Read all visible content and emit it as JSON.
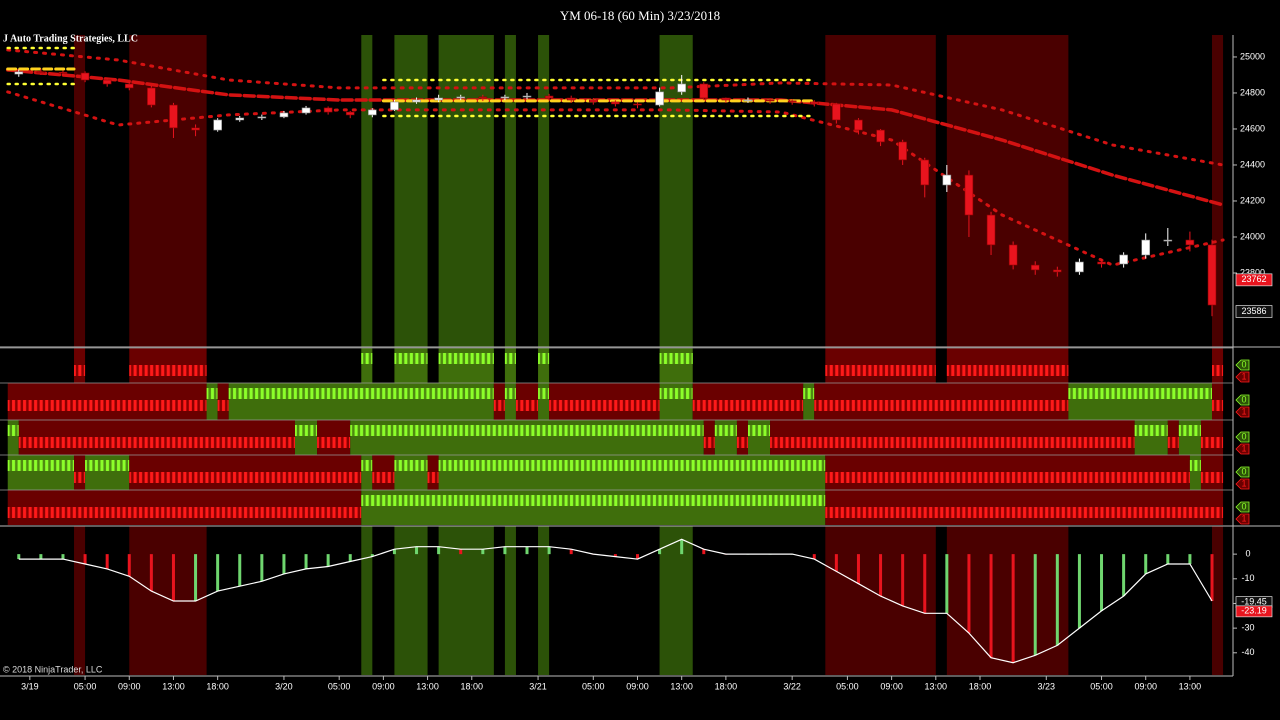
{
  "chart_data": {
    "type": "candlestick",
    "title": "YM 06-18 (60 Min)  3/23/2018",
    "watermark": "J Auto Trading Strategies, LLC",
    "copyright": "© 2018 NinjaTrader, LLC",
    "xlim": [
      -0.7,
      110.9
    ],
    "xticks": [
      {
        "value": 2,
        "label": "3/19"
      },
      {
        "value": 7,
        "label": "05:00"
      },
      {
        "value": 11,
        "label": "09:00"
      },
      {
        "value": 15,
        "label": "13:00"
      },
      {
        "value": 19,
        "label": "18:00"
      },
      {
        "value": 25,
        "label": "3/20"
      },
      {
        "value": 30,
        "label": "05:00"
      },
      {
        "value": 34,
        "label": "09:00"
      },
      {
        "value": 38,
        "label": "13:00"
      },
      {
        "value": 42,
        "label": "18:00"
      },
      {
        "value": 48,
        "label": "3/21"
      },
      {
        "value": 53,
        "label": "05:00"
      },
      {
        "value": 57,
        "label": "09:00"
      },
      {
        "value": 61,
        "label": "13:00"
      },
      {
        "value": 65,
        "label": "18:00"
      },
      {
        "value": 71,
        "label": "3/22"
      },
      {
        "value": 76,
        "label": "05:00"
      },
      {
        "value": 80,
        "label": "09:00"
      },
      {
        "value": 84,
        "label": "13:00"
      },
      {
        "value": 88,
        "label": "18:00"
      },
      {
        "value": 94,
        "label": "3/23"
      },
      {
        "value": 99,
        "label": "05:00"
      },
      {
        "value": 103,
        "label": "09:00"
      },
      {
        "value": 107,
        "label": "13:00"
      }
    ],
    "ylim": [
      23400,
      25122
    ],
    "yticks": [
      23800,
      24000,
      24200,
      24400,
      24600,
      24800,
      25000
    ],
    "price_markers": [
      23762,
      23586
    ],
    "price_marker_colors": [
      "#e8141e",
      "#111111"
    ],
    "up_color": "#ffffff",
    "down_color": "#e8141e",
    "x": [
      1,
      3,
      5,
      7,
      9,
      11,
      13,
      15,
      17,
      19,
      21,
      23,
      25,
      27,
      29,
      31,
      33,
      35,
      37,
      39,
      41,
      43,
      45,
      47,
      49,
      51,
      53,
      55,
      57,
      59,
      61,
      63,
      65,
      67,
      69,
      71,
      73,
      75,
      77,
      79,
      81,
      83,
      85,
      87,
      89,
      91,
      93,
      95,
      97,
      99,
      101,
      103,
      105,
      107,
      109
    ],
    "open": [
      24905,
      24917,
      24915,
      24911,
      24872,
      24850,
      24828,
      24733,
      24606,
      24594,
      24650,
      24661,
      24667,
      24689,
      24717,
      24694,
      24678,
      24706,
      24750,
      24761,
      24772,
      24778,
      24772,
      24778,
      24783,
      24772,
      24761,
      24750,
      24739,
      24733,
      24806,
      24850,
      24772,
      24761,
      24761,
      24756,
      24750,
      24739,
      24650,
      24594,
      24528,
      24428,
      24289,
      24344,
      24122,
      23956,
      23844,
      23817,
      23806,
      23861,
      23850,
      23900,
      23983,
      23983,
      23956
    ],
    "high": [
      24930,
      24935,
      24925,
      24920,
      24880,
      24860,
      24840,
      24745,
      24625,
      24660,
      24672,
      24680,
      24700,
      24728,
      24725,
      24700,
      24715,
      24762,
      24775,
      24790,
      24790,
      24790,
      24790,
      24800,
      24795,
      24785,
      24772,
      24760,
      24748,
      24830,
      24900,
      24860,
      24775,
      24775,
      24770,
      24765,
      24760,
      24745,
      24660,
      24600,
      24540,
      24440,
      24400,
      24370,
      24140,
      23975,
      23865,
      23835,
      23880,
      23880,
      23915,
      24020,
      24050,
      24030,
      23985
    ],
    "low": [
      24890,
      24900,
      24898,
      24860,
      24835,
      24815,
      24720,
      24550,
      24560,
      24585,
      24640,
      24650,
      24660,
      24680,
      24680,
      24660,
      24665,
      24700,
      24740,
      24750,
      24760,
      24755,
      24760,
      24765,
      24760,
      24745,
      24735,
      24725,
      24715,
      24725,
      24790,
      24760,
      24745,
      24745,
      24740,
      24735,
      24725,
      24630,
      24570,
      24505,
      24400,
      24220,
      24250,
      24000,
      23900,
      23820,
      23790,
      23780,
      23790,
      23830,
      23830,
      23880,
      23950,
      23920,
      23560
    ],
    "close": [
      24917,
      24915,
      24911,
      24872,
      24850,
      24828,
      24733,
      24606,
      24594,
      24650,
      24661,
      24667,
      24689,
      24717,
      24694,
      24678,
      24706,
      24750,
      24761,
      24772,
      24778,
      24772,
      24778,
      24783,
      24772,
      24761,
      24750,
      24739,
      24733,
      24806,
      24850,
      24772,
      24761,
      24761,
      24756,
      24750,
      24739,
      24650,
      24594,
      24528,
      24428,
      24289,
      24344,
      24122,
      23956,
      23844,
      23817,
      23806,
      23861,
      23850,
      23900,
      23983,
      23983,
      23956,
      23622
    ],
    "zones": [
      {
        "from": 6,
        "to": 7,
        "color": "#4a0000"
      },
      {
        "from": 11,
        "to": 18,
        "color": "#4a0000"
      },
      {
        "from": 32,
        "to": 33,
        "color": "#2c5208"
      },
      {
        "from": 35,
        "to": 38,
        "color": "#2c5208"
      },
      {
        "from": 39,
        "to": 44,
        "color": "#2c5208"
      },
      {
        "from": 45,
        "to": 46,
        "color": "#2c5208"
      },
      {
        "from": 48,
        "to": 49,
        "color": "#2c5208"
      },
      {
        "from": 59,
        "to": 62,
        "color": "#2c5208"
      },
      {
        "from": 74,
        "to": 84,
        "color": "#4a0000"
      },
      {
        "from": 85,
        "to": 96,
        "color": "#4a0000"
      },
      {
        "from": 109,
        "to": 110,
        "color": "#4a0000"
      }
    ],
    "overlays": [
      {
        "x": [
          0,
          10,
          20,
          30,
          40,
          50,
          60,
          70,
          80,
          90,
          100,
          110
        ],
        "values": [
          25039,
          24983,
          24872,
          24828,
          24828,
          24828,
          24828,
          24856,
          24844,
          24706,
          24511,
          24400
        ],
        "color": "#d41212",
        "dash": "2 7",
        "width": 3
      },
      {
        "x": [
          0,
          10,
          20,
          30,
          40,
          50,
          60,
          70,
          80,
          90,
          100,
          110
        ],
        "values": [
          24806,
          24622,
          24678,
          24706,
          24706,
          24706,
          24706,
          24694,
          24539,
          24122,
          23844,
          23983
        ],
        "color": "#d41212",
        "dash": "2 7",
        "width": 3
      },
      {
        "x": [
          0,
          10,
          20,
          30,
          40,
          50,
          60,
          70,
          80,
          90,
          100,
          110
        ],
        "values": [
          24928,
          24872,
          24789,
          24761,
          24761,
          24761,
          24761,
          24761,
          24706,
          24539,
          24344,
          24178
        ],
        "color": "#d41212",
        "dash": "10 4",
        "width": 3.5
      },
      {
        "x": [
          0,
          6,
          20,
          34,
          50,
          73
        ],
        "values": [
          25050,
          25050,
          null,
          24872,
          24872,
          24872
        ],
        "color": "#ffff33",
        "dash": "2 6",
        "width": 2.5
      },
      {
        "x": [
          0,
          6,
          20,
          34,
          50,
          73
        ],
        "values": [
          24850,
          24850,
          null,
          24672,
          24672,
          24672
        ],
        "color": "#ffff33",
        "dash": "2 6",
        "width": 2.5
      },
      {
        "x": [
          0,
          6,
          20,
          34,
          50,
          73
        ],
        "values": [
          24933,
          24933,
          null,
          24756,
          24756,
          24756
        ],
        "color": "#ffd21e",
        "dash": "8 4",
        "width": 3
      }
    ],
    "signals": {
      "up_color": "#8cff2a",
      "down_color": "#ff1a1a",
      "up_band": "#3f6e0c",
      "down_band": "#6a0000",
      "rows": [
        [
          [
            6,
            7,
            "down"
          ],
          [
            11,
            18,
            "down"
          ],
          [
            32,
            33,
            "up"
          ],
          [
            35,
            38,
            "up"
          ],
          [
            39,
            44,
            "up"
          ],
          [
            45,
            46,
            "up"
          ],
          [
            48,
            49,
            "up"
          ],
          [
            59,
            62,
            "up"
          ],
          [
            74,
            84,
            "down"
          ],
          [
            85,
            96,
            "down"
          ],
          [
            109,
            110,
            "down"
          ]
        ],
        [
          [
            0,
            18,
            "down"
          ],
          [
            18,
            19,
            "up"
          ],
          [
            19,
            20,
            "down"
          ],
          [
            20,
            44,
            "up"
          ],
          [
            44,
            45,
            "down"
          ],
          [
            45,
            46,
            "up"
          ],
          [
            46,
            48,
            "down"
          ],
          [
            48,
            49,
            "up"
          ],
          [
            49,
            59,
            "down"
          ],
          [
            59,
            62,
            "up"
          ],
          [
            62,
            72,
            "down"
          ],
          [
            72,
            73,
            "up"
          ],
          [
            73,
            96,
            "down"
          ],
          [
            96,
            109,
            "up"
          ],
          [
            109,
            110,
            "down"
          ]
        ],
        [
          [
            0,
            1,
            "up"
          ],
          [
            1,
            26,
            "down"
          ],
          [
            26,
            28,
            "up"
          ],
          [
            28,
            31,
            "down"
          ],
          [
            31,
            63,
            "up"
          ],
          [
            63,
            64,
            "down"
          ],
          [
            64,
            66,
            "up"
          ],
          [
            66,
            67,
            "down"
          ],
          [
            67,
            69,
            "up"
          ],
          [
            69,
            102,
            "down"
          ],
          [
            102,
            105,
            "up"
          ],
          [
            105,
            106,
            "down"
          ],
          [
            106,
            108,
            "up"
          ],
          [
            108,
            110,
            "down"
          ]
        ],
        [
          [
            0,
            6,
            "up"
          ],
          [
            6,
            7,
            "down"
          ],
          [
            7,
            11,
            "up"
          ],
          [
            11,
            32,
            "down"
          ],
          [
            32,
            33,
            "up"
          ],
          [
            33,
            35,
            "down"
          ],
          [
            35,
            38,
            "up"
          ],
          [
            38,
            39,
            "down"
          ],
          [
            39,
            74,
            "up"
          ],
          [
            74,
            107,
            "down"
          ],
          [
            107,
            108,
            "up"
          ],
          [
            108,
            110,
            "down"
          ]
        ],
        [
          [
            0,
            32,
            "down"
          ],
          [
            32,
            74,
            "up"
          ],
          [
            74,
            110,
            "down"
          ]
        ]
      ],
      "labels": [
        [
          "0",
          "1"
        ],
        [
          "0",
          "1"
        ],
        [
          "0",
          "1"
        ],
        [
          "0",
          "1"
        ],
        [
          "0",
          "1"
        ]
      ]
    },
    "oscillator": {
      "type": "histogram",
      "ylim": [
        -49,
        11
      ],
      "yticks": [
        0,
        -10,
        -20,
        -30,
        -40
      ],
      "x": [
        1,
        3,
        5,
        7,
        9,
        11,
        13,
        15,
        17,
        19,
        21,
        23,
        25,
        27,
        29,
        31,
        33,
        35,
        37,
        39,
        41,
        43,
        45,
        47,
        49,
        51,
        53,
        55,
        57,
        59,
        61,
        63,
        65,
        67,
        69,
        71,
        73,
        75,
        77,
        79,
        81,
        83,
        85,
        87,
        89,
        91,
        93,
        95,
        97,
        99,
        101,
        103,
        105,
        107,
        109
      ],
      "values": [
        -2,
        -2,
        -2,
        -4,
        -6,
        -9,
        -15,
        -19,
        -19,
        -15,
        -13,
        -11,
        -8,
        -6,
        -5,
        -3,
        -1,
        2,
        3,
        3,
        2,
        2,
        3,
        3,
        3,
        2,
        0,
        -1,
        -2,
        2,
        6,
        2,
        0,
        0,
        0,
        0,
        -2,
        -7,
        -12,
        -17,
        -21,
        -24,
        -24,
        -32,
        -42,
        -44,
        -41,
        -37,
        -30,
        -23,
        -17,
        -8,
        -4,
        -4,
        -19
      ],
      "up_color": "#6fd66f",
      "down_color": "#e8141e",
      "line_color": "#ffffff",
      "markers": [
        -19.45,
        -23.19
      ],
      "marker_colors": [
        "#111111",
        "#e8141e"
      ]
    }
  }
}
